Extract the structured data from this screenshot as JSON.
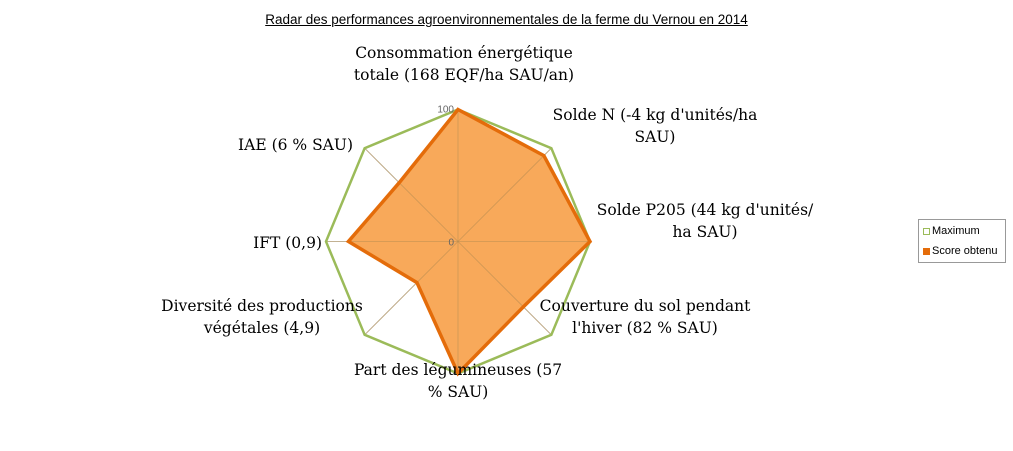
{
  "chart_data": {
    "type": "radar",
    "title": "Radar des performances agroenvironnementales de la ferme du Vernou en 2014",
    "categories": [
      [
        "Consommation énergétique",
        "totale (168 EQF/ha SAU/an)"
      ],
      [
        "Solde N (-4 kg d'unités/ha",
        "SAU)"
      ],
      [
        "Solde P205 (44 kg d'unités/",
        "ha SAU)"
      ],
      [
        "Couverture du sol pendant",
        "l'hiver (82 % SAU)"
      ],
      [
        "Part des légumineuses (57",
        "% SAU)"
      ],
      [
        "Diversité des productions",
        "végétales (4,9)"
      ],
      [
        "IFT (0,9)"
      ],
      [
        "IAE (6 % SAU)"
      ]
    ],
    "ylim": [
      0,
      100
    ],
    "tick_labels": [
      "0",
      "100"
    ],
    "series": [
      {
        "name": "Maximum",
        "values": [
          100,
          100,
          100,
          100,
          100,
          100,
          100,
          100
        ],
        "color": "#9bbb59"
      },
      {
        "name": "Score obtenu",
        "values": [
          100,
          92,
          100,
          70,
          100,
          44,
          83,
          63
        ],
        "color": "#e46c0a",
        "fill": "#f8a95a"
      }
    ],
    "legend": "right"
  }
}
